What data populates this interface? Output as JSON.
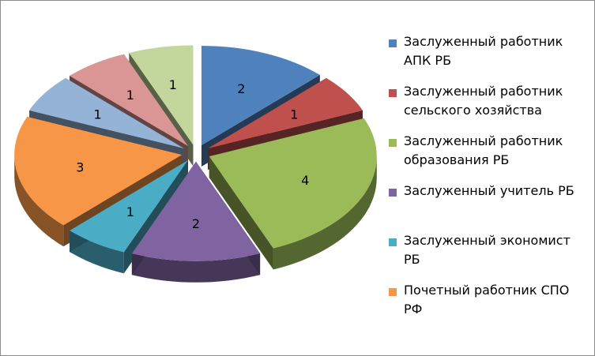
{
  "chart_data": {
    "type": "pie",
    "title": "",
    "categories": [
      "Заслуженный работник АПК РБ",
      "Заслуженный работник сельского хозяйства",
      "Заслуженный работник образования РБ",
      "Заслуженный учитель РБ",
      "Заслуженный экономист РБ",
      "Почетный работник СПО РФ",
      "",
      "",
      ""
    ],
    "values": [
      2,
      1,
      4,
      2,
      1,
      3,
      1,
      1,
      1
    ],
    "colors": [
      "#4F81BD",
      "#C0504D",
      "#9BBB59",
      "#8064A2",
      "#4BACC6",
      "#F79646",
      "#95B3D7",
      "#D99694",
      "#C3D69B"
    ],
    "data_labels": [
      "2",
      "1",
      "4",
      "2",
      "1",
      "3",
      "1",
      "1",
      "1"
    ],
    "legend_placement": "right",
    "style": "exploded-3d"
  },
  "legend": [
    {
      "label": "Заслуженный работник АПК РБ",
      "color": "#4F81BD"
    },
    {
      "label": "Заслуженный работник сельского хозяйства",
      "color": "#C0504D"
    },
    {
      "label": "Заслуженный работник образования РБ",
      "color": "#9BBB59"
    },
    {
      "label": "Заслуженный учитель РБ",
      "color": "#8064A2"
    },
    {
      "label": "Заслуженный экономист РБ",
      "color": "#4BACC6"
    },
    {
      "label": "Почетный работник СПО РФ",
      "color": "#F79646"
    }
  ]
}
